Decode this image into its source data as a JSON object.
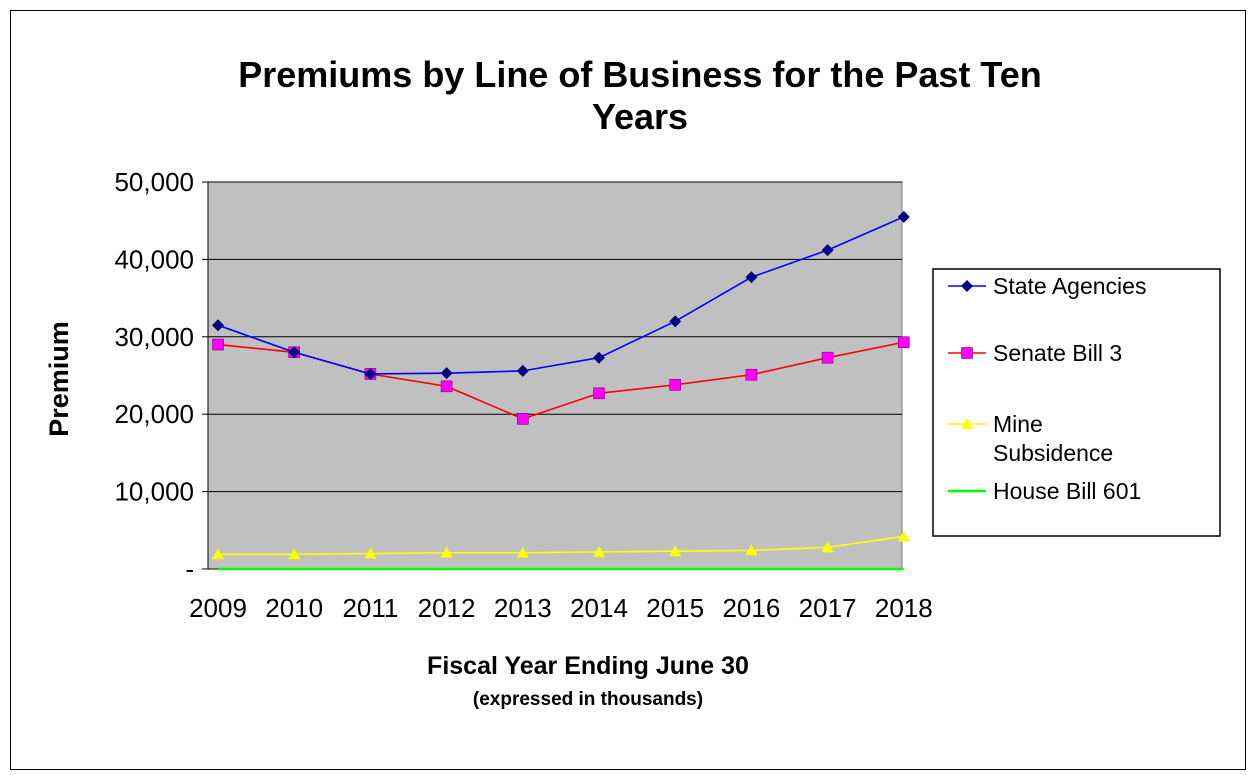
{
  "chart_data": {
    "type": "line",
    "title": [
      "Premiums by Line of Business for the Past Ten",
      "Years"
    ],
    "xlabel": "Fiscal Year Ending June 30",
    "xlabel_sub": "(expressed in thousands)",
    "ylabel": "Premium",
    "ylim": [
      0,
      50000
    ],
    "yticks": [
      0,
      10000,
      20000,
      30000,
      40000,
      50000
    ],
    "ytick_labels": [
      "-",
      "10,000",
      "20,000",
      "30,000",
      "40,000",
      "50,000"
    ],
    "categories": [
      "2009",
      "2010",
      "2011",
      "2012",
      "2013",
      "2014",
      "2015",
      "2016",
      "2017",
      "2018"
    ],
    "plot_background": "#c0c0c0",
    "grid": true,
    "legend_position": "right",
    "series": [
      {
        "name": "State Agencies",
        "color": "#0000ff",
        "marker": "diamond",
        "marker_color": "#000080",
        "values": [
          31500,
          28000,
          25200,
          25300,
          25600,
          27300,
          32000,
          37700,
          41200,
          45500
        ]
      },
      {
        "name": "Senate Bill 3",
        "color": "#ff0000",
        "marker": "square",
        "marker_color": "#ff00ff",
        "values": [
          29000,
          28000,
          25200,
          23600,
          19400,
          22700,
          23800,
          25100,
          27300,
          29300
        ]
      },
      {
        "name": "Mine Subsidence",
        "legend_lines": [
          "Mine",
          "Subsidence"
        ],
        "color": "#ffff00",
        "marker": "triangle",
        "marker_color": "#ffff00",
        "values": [
          1900,
          1900,
          2000,
          2100,
          2100,
          2200,
          2300,
          2400,
          2800,
          4200
        ]
      },
      {
        "name": "House Bill 601",
        "color": "#00ff00",
        "marker": "none",
        "marker_color": "#00ff00",
        "values": [
          0,
          0,
          0,
          0,
          0,
          0,
          0,
          0,
          0,
          0
        ]
      }
    ]
  }
}
